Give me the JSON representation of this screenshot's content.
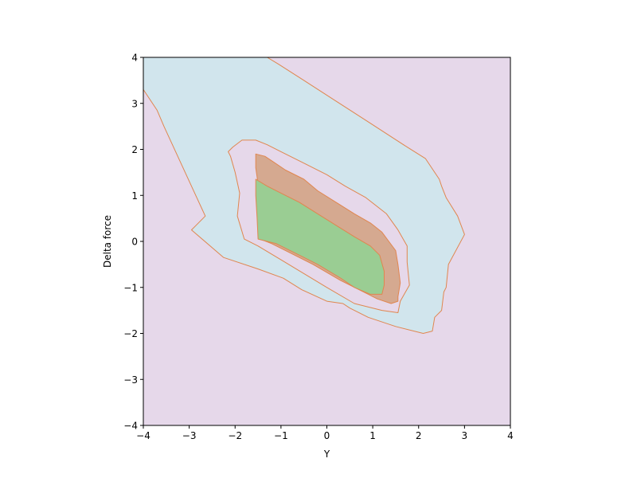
{
  "chart_data": {
    "type": "contour",
    "title": "",
    "xlabel": "Y",
    "ylabel": "Delta force",
    "xlim": [
      -4,
      4
    ],
    "ylim": [
      -4,
      4
    ],
    "xticks": [
      -4,
      -3,
      -2,
      -1,
      0,
      1,
      2,
      3,
      4
    ],
    "yticks": [
      -4,
      -3,
      -2,
      -1,
      0,
      1,
      2,
      3,
      4
    ],
    "xtick_labels": [
      "−4",
      "−3",
      "−2",
      "−1",
      "0",
      "1",
      "2",
      "3",
      "4"
    ],
    "ytick_labels": [
      "−4",
      "−3",
      "−2",
      "−1",
      "0",
      "1",
      "2",
      "3",
      "4"
    ],
    "grid": false,
    "legend": "none",
    "colors": {
      "background_region": "#e6d8ea",
      "outer_region": "#d1e5ed",
      "inner_region": "#d5a990",
      "core_region": "#9acd93",
      "boundary": "#e0864f"
    },
    "regions": [
      {
        "fill": "outer_region",
        "points": [
          [
            -4,
            3.3
          ],
          [
            -3.7,
            2.85
          ],
          [
            -3.55,
            2.5
          ],
          [
            -2.95,
            1.2
          ],
          [
            -2.65,
            0.55
          ],
          [
            -2.85,
            0.35
          ],
          [
            -2.95,
            0.25
          ],
          [
            -2.25,
            -0.35
          ],
          [
            -1.5,
            -0.6
          ],
          [
            -0.95,
            -0.8
          ],
          [
            -0.55,
            -1.05
          ],
          [
            0,
            -1.3
          ],
          [
            0.35,
            -1.35
          ],
          [
            0.5,
            -1.45
          ],
          [
            0.9,
            -1.65
          ],
          [
            1.5,
            -1.85
          ],
          [
            2.1,
            -2.0
          ],
          [
            2.3,
            -1.95
          ],
          [
            2.35,
            -1.65
          ],
          [
            2.5,
            -1.5
          ],
          [
            2.55,
            -1.1
          ],
          [
            2.6,
            -1.0
          ],
          [
            2.65,
            -0.5
          ],
          [
            3,
            0.15
          ],
          [
            2.85,
            0.55
          ],
          [
            2.6,
            0.95
          ],
          [
            2.5,
            1.2
          ],
          [
            2.45,
            1.35
          ],
          [
            2.15,
            1.8
          ],
          [
            1.75,
            2.05
          ],
          [
            0.9,
            2.6
          ],
          [
            0.2,
            3.05
          ],
          [
            -0.5,
            3.5
          ],
          [
            -1.05,
            3.85
          ],
          [
            -1.3,
            4
          ],
          [
            -4,
            4
          ]
        ]
      },
      {
        "fill": "background_region",
        "points": [
          [
            -2.15,
            1.95
          ],
          [
            -2.05,
            2.05
          ],
          [
            -1.85,
            2.2
          ],
          [
            -1.55,
            2.2
          ],
          [
            -1.3,
            2.1
          ],
          [
            -1.0,
            1.95
          ],
          [
            -0.5,
            1.7
          ],
          [
            0,
            1.45
          ],
          [
            0.4,
            1.2
          ],
          [
            0.85,
            0.95
          ],
          [
            1.3,
            0.6
          ],
          [
            1.55,
            0.25
          ],
          [
            1.75,
            -0.1
          ],
          [
            1.75,
            -0.45
          ],
          [
            1.8,
            -0.95
          ],
          [
            1.6,
            -1.3
          ],
          [
            1.55,
            -1.55
          ],
          [
            1.2,
            -1.5
          ],
          [
            0.6,
            -1.35
          ],
          [
            0,
            -1.0
          ],
          [
            -0.5,
            -0.7
          ],
          [
            -1.0,
            -0.4
          ],
          [
            -1.5,
            -0.1
          ],
          [
            -1.8,
            0.05
          ],
          [
            -1.95,
            0.55
          ],
          [
            -1.9,
            1.05
          ],
          [
            -2.0,
            1.5
          ],
          [
            -2.1,
            1.85
          ]
        ]
      },
      {
        "fill": "inner_region",
        "points": [
          [
            -1.55,
            1.9
          ],
          [
            -1.35,
            1.85
          ],
          [
            -1.2,
            1.75
          ],
          [
            -0.9,
            1.55
          ],
          [
            -0.5,
            1.35
          ],
          [
            -0.2,
            1.1
          ],
          [
            0.2,
            0.85
          ],
          [
            0.6,
            0.6
          ],
          [
            0.95,
            0.4
          ],
          [
            1.2,
            0.2
          ],
          [
            1.35,
            0.0
          ],
          [
            1.5,
            -0.2
          ],
          [
            1.55,
            -0.5
          ],
          [
            1.6,
            -0.9
          ],
          [
            1.55,
            -1.2
          ],
          [
            1.55,
            -1.3
          ],
          [
            1.4,
            -1.35
          ],
          [
            1.1,
            -1.25
          ],
          [
            0.7,
            -1.05
          ],
          [
            0.3,
            -0.85
          ],
          [
            -0.3,
            -0.5
          ],
          [
            -0.8,
            -0.25
          ],
          [
            -1.2,
            -0.05
          ],
          [
            -1.45,
            0.05
          ],
          [
            -1.45,
            0.55
          ],
          [
            -1.5,
            1.25
          ],
          [
            -1.55,
            1.6
          ]
        ]
      },
      {
        "fill": "core_region",
        "points": [
          [
            -1.55,
            1.35
          ],
          [
            -1.3,
            1.2
          ],
          [
            -1.0,
            1.05
          ],
          [
            -0.6,
            0.85
          ],
          [
            -0.2,
            0.6
          ],
          [
            0.2,
            0.35
          ],
          [
            0.6,
            0.1
          ],
          [
            0.95,
            -0.1
          ],
          [
            1.15,
            -0.3
          ],
          [
            1.25,
            -0.65
          ],
          [
            1.25,
            -0.95
          ],
          [
            1.2,
            -1.15
          ],
          [
            0.95,
            -1.15
          ],
          [
            0.6,
            -1.0
          ],
          [
            0.3,
            -0.8
          ],
          [
            -0.2,
            -0.5
          ],
          [
            -0.7,
            -0.25
          ],
          [
            -1.1,
            -0.05
          ],
          [
            -1.5,
            0.05
          ],
          [
            -1.52,
            0.5
          ],
          [
            -1.55,
            1.0
          ]
        ]
      }
    ]
  }
}
